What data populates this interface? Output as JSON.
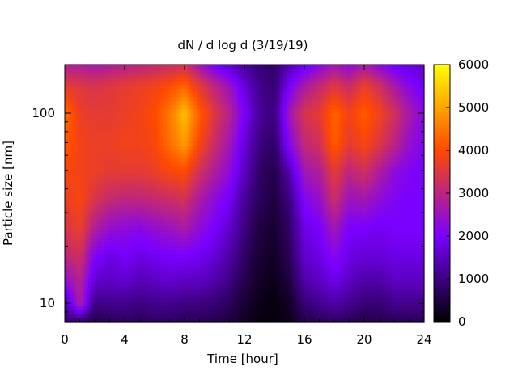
{
  "chart_data": {
    "type": "heatmap",
    "title": "dN / d log d (3/19/19)",
    "xlabel": "Time [hour]",
    "ylabel": "Particle size [nm]",
    "xlim": [
      0,
      24
    ],
    "ylim": [
      8,
      180
    ],
    "yscale": "log",
    "x_ticks": [
      0,
      4,
      8,
      12,
      16,
      20,
      24
    ],
    "y_ticks": [
      10,
      100
    ],
    "colorbar": {
      "min": 0,
      "max": 6000,
      "ticks": [
        0,
        1000,
        2000,
        3000,
        4000,
        5000,
        6000
      ],
      "palette": [
        "#000000",
        "#7a00ff",
        "#ff4a00",
        "#ffff00"
      ]
    },
    "size_bins_nm": [
      8,
      10,
      13,
      18,
      25,
      35,
      50,
      70,
      100,
      140,
      180
    ],
    "time_hours": [
      0,
      1,
      2,
      3,
      4,
      5,
      6,
      7,
      8,
      9,
      10,
      11,
      12,
      13,
      14,
      15,
      16,
      17,
      18,
      19,
      20,
      21,
      22,
      23,
      24
    ],
    "values": [
      [
        900,
        800,
        600,
        700,
        800,
        700,
        800,
        800,
        700,
        700,
        600,
        500,
        300,
        100,
        100,
        200,
        600,
        700,
        800,
        700,
        600,
        600,
        700,
        700,
        700
      ],
      [
        1200,
        2800,
        1000,
        1100,
        1100,
        1000,
        1100,
        1100,
        1000,
        1000,
        900,
        700,
        400,
        200,
        100,
        300,
        900,
        1100,
        1300,
        1100,
        900,
        900,
        1100,
        1100,
        1100
      ],
      [
        2300,
        2900,
        1600,
        1500,
        1600,
        1400,
        1500,
        1600,
        1500,
        1500,
        1300,
        1000,
        600,
        300,
        200,
        500,
        1300,
        1500,
        1800,
        1500,
        1300,
        1300,
        1500,
        1500,
        1500
      ],
      [
        3000,
        3300,
        2100,
        1800,
        2000,
        1800,
        1900,
        2000,
        2000,
        1900,
        1700,
        1300,
        800,
        400,
        300,
        700,
        1600,
        1800,
        2200,
        1800,
        1700,
        1700,
        1800,
        1800,
        1800
      ],
      [
        3400,
        3700,
        2800,
        2400,
        2300,
        2200,
        2400,
        2500,
        2700,
        2300,
        2000,
        1600,
        1000,
        500,
        400,
        800,
        1800,
        2000,
        2600,
        2000,
        2000,
        1900,
        2000,
        2000,
        2000
      ],
      [
        3700,
        3900,
        3400,
        3100,
        3000,
        3000,
        3100,
        3200,
        3300,
        2700,
        2300,
        1900,
        1200,
        700,
        500,
        1000,
        2100,
        2400,
        3200,
        2500,
        2600,
        2300,
        2100,
        2000,
        2000
      ],
      [
        3900,
        3800,
        3700,
        3600,
        3600,
        3600,
        3700,
        3900,
        4000,
        3300,
        2800,
        2300,
        1500,
        800,
        600,
        1400,
        2600,
        2800,
        3600,
        3000,
        3300,
        2800,
        2300,
        2100,
        2000
      ],
      [
        4200,
        3800,
        3700,
        3700,
        3800,
        3800,
        3900,
        4400,
        4900,
        3900,
        3200,
        2600,
        1700,
        1000,
        800,
        2200,
        3100,
        3300,
        4200,
        3600,
        3900,
        3500,
        3000,
        2400,
        2100
      ],
      [
        4400,
        3700,
        3600,
        3600,
        3700,
        3800,
        4000,
        4500,
        5300,
        4200,
        3500,
        2900,
        2000,
        1200,
        1000,
        2600,
        3400,
        3600,
        4300,
        3800,
        4200,
        3800,
        3300,
        2700,
        2200
      ],
      [
        3600,
        3500,
        3400,
        3500,
        3600,
        3700,
        3800,
        4000,
        4300,
        3600,
        3000,
        2500,
        1700,
        1100,
        900,
        2000,
        2700,
        3100,
        3500,
        3200,
        3700,
        3300,
        2700,
        2200,
        1900
      ],
      [
        2800,
        2800,
        2700,
        2800,
        2900,
        3000,
        3100,
        3200,
        3300,
        2600,
        2000,
        1600,
        1200,
        900,
        800,
        1400,
        1800,
        2200,
        2600,
        2300,
        2700,
        2300,
        1900,
        1700,
        1600
      ]
    ]
  }
}
